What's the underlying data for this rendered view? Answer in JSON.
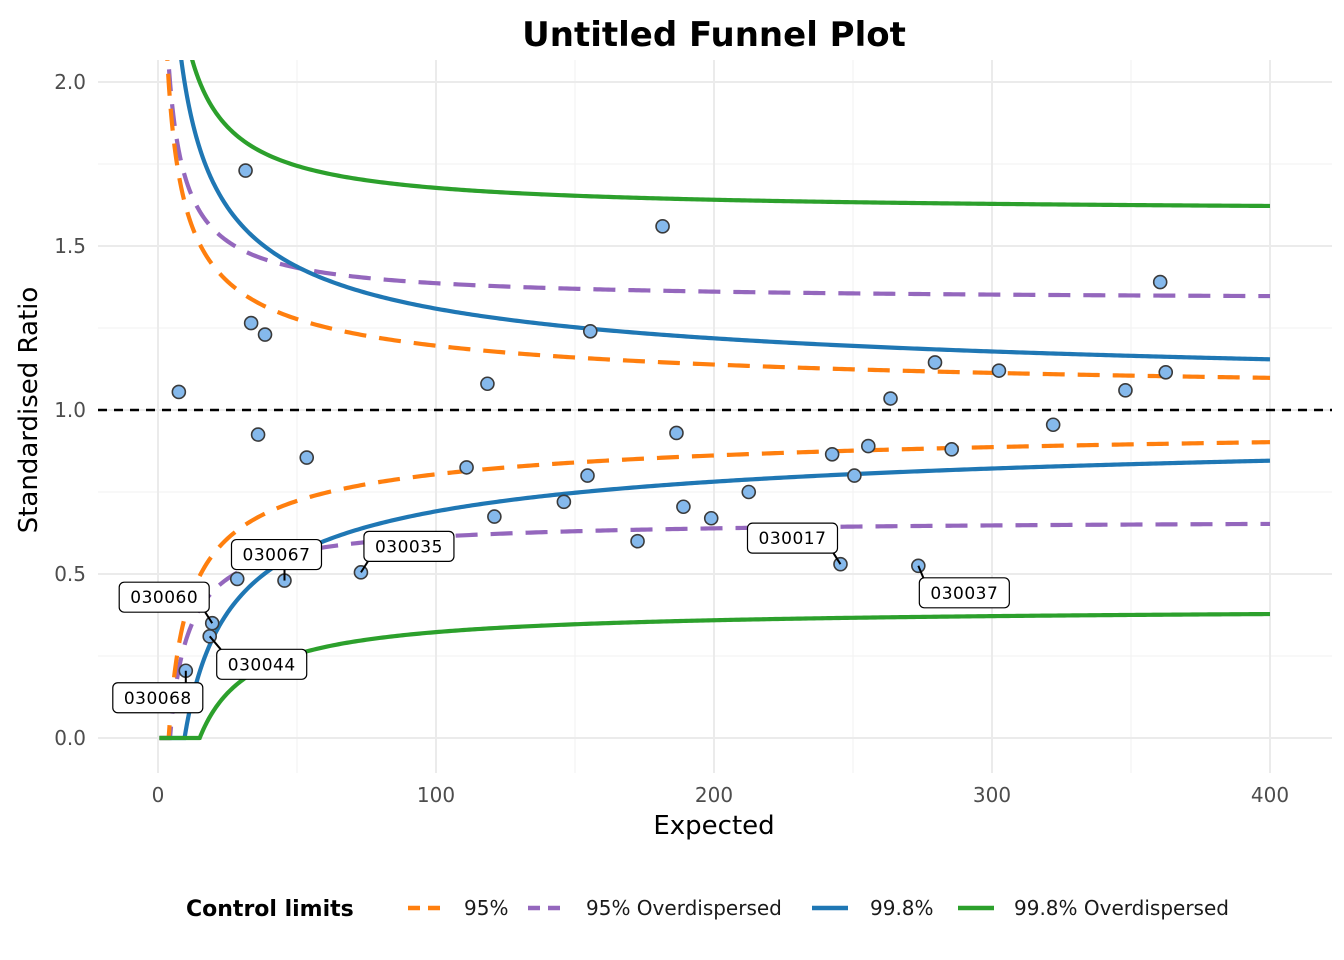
{
  "chart_data": {
    "type": "scatter",
    "title": "Untitled Funnel Plot",
    "xlabel": "Expected",
    "ylabel": "Standardised Ratio",
    "xlim": [
      -20,
      420
    ],
    "ylim": [
      -0.08,
      2.1
    ],
    "x_ticks": [
      0,
      100,
      200,
      300,
      400
    ],
    "y_ticks": [
      0.0,
      0.5,
      1.0,
      1.5,
      2.0
    ],
    "x_tick_labels": [
      "0",
      "100",
      "200",
      "300",
      "400"
    ],
    "y_tick_labels": [
      "0.0",
      "0.5",
      "1.0",
      "1.5",
      "2.0"
    ],
    "grid": true,
    "target_line": 1.0,
    "points": [
      {
        "x": 7.5,
        "y": 1.055
      },
      {
        "x": 10,
        "y": 0.205,
        "label": "030068"
      },
      {
        "x": 18.6,
        "y": 0.31,
        "label": "030044"
      },
      {
        "x": 19.5,
        "y": 0.35,
        "label": "030060"
      },
      {
        "x": 28.5,
        "y": 0.485
      },
      {
        "x": 31.5,
        "y": 1.73
      },
      {
        "x": 33.5,
        "y": 1.265
      },
      {
        "x": 36,
        "y": 0.925
      },
      {
        "x": 38.5,
        "y": 1.23
      },
      {
        "x": 45.5,
        "y": 0.48,
        "label": "030067"
      },
      {
        "x": 53.5,
        "y": 0.855
      },
      {
        "x": 73,
        "y": 0.505,
        "label": "030035"
      },
      {
        "x": 111,
        "y": 0.825
      },
      {
        "x": 118.5,
        "y": 1.08
      },
      {
        "x": 121,
        "y": 0.675
      },
      {
        "x": 146,
        "y": 0.72
      },
      {
        "x": 154.5,
        "y": 0.8
      },
      {
        "x": 155.5,
        "y": 1.24
      },
      {
        "x": 172.5,
        "y": 0.6
      },
      {
        "x": 181.5,
        "y": 1.56
      },
      {
        "x": 186.5,
        "y": 0.93
      },
      {
        "x": 189,
        "y": 0.705
      },
      {
        "x": 199,
        "y": 0.67
      },
      {
        "x": 212.5,
        "y": 0.75
      },
      {
        "x": 242.5,
        "y": 0.865
      },
      {
        "x": 245.5,
        "y": 0.53,
        "label": "030017"
      },
      {
        "x": 250.5,
        "y": 0.8
      },
      {
        "x": 255.5,
        "y": 0.89
      },
      {
        "x": 263.5,
        "y": 1.035
      },
      {
        "x": 273.5,
        "y": 0.525,
        "label": "030037"
      },
      {
        "x": 279.5,
        "y": 1.145
      },
      {
        "x": 285.5,
        "y": 0.88
      },
      {
        "x": 302.5,
        "y": 1.12
      },
      {
        "x": 322,
        "y": 0.955
      },
      {
        "x": 348,
        "y": 1.06
      },
      {
        "x": 360.5,
        "y": 1.39
      },
      {
        "x": 362.5,
        "y": 1.115
      }
    ],
    "limits": [
      {
        "name": "95%",
        "color": "#ff7f0e",
        "dash": true,
        "kind": "poisson",
        "z": 1.959964
      },
      {
        "name": "95% Overdispersed",
        "color": "#9467bd",
        "dash": true,
        "kind": "overdispersed",
        "z": 1.959964,
        "tau": 0.17
      },
      {
        "name": "99.8%",
        "color": "#1f77b4",
        "dash": false,
        "kind": "poisson",
        "z": 3.090232
      },
      {
        "name": "99.8% Overdispersed",
        "color": "#2ca02c",
        "dash": false,
        "kind": "overdispersed",
        "z": 3.090232,
        "tau": 0.195
      }
    ],
    "legend": {
      "title": "Control limits",
      "position": "bottom"
    }
  }
}
